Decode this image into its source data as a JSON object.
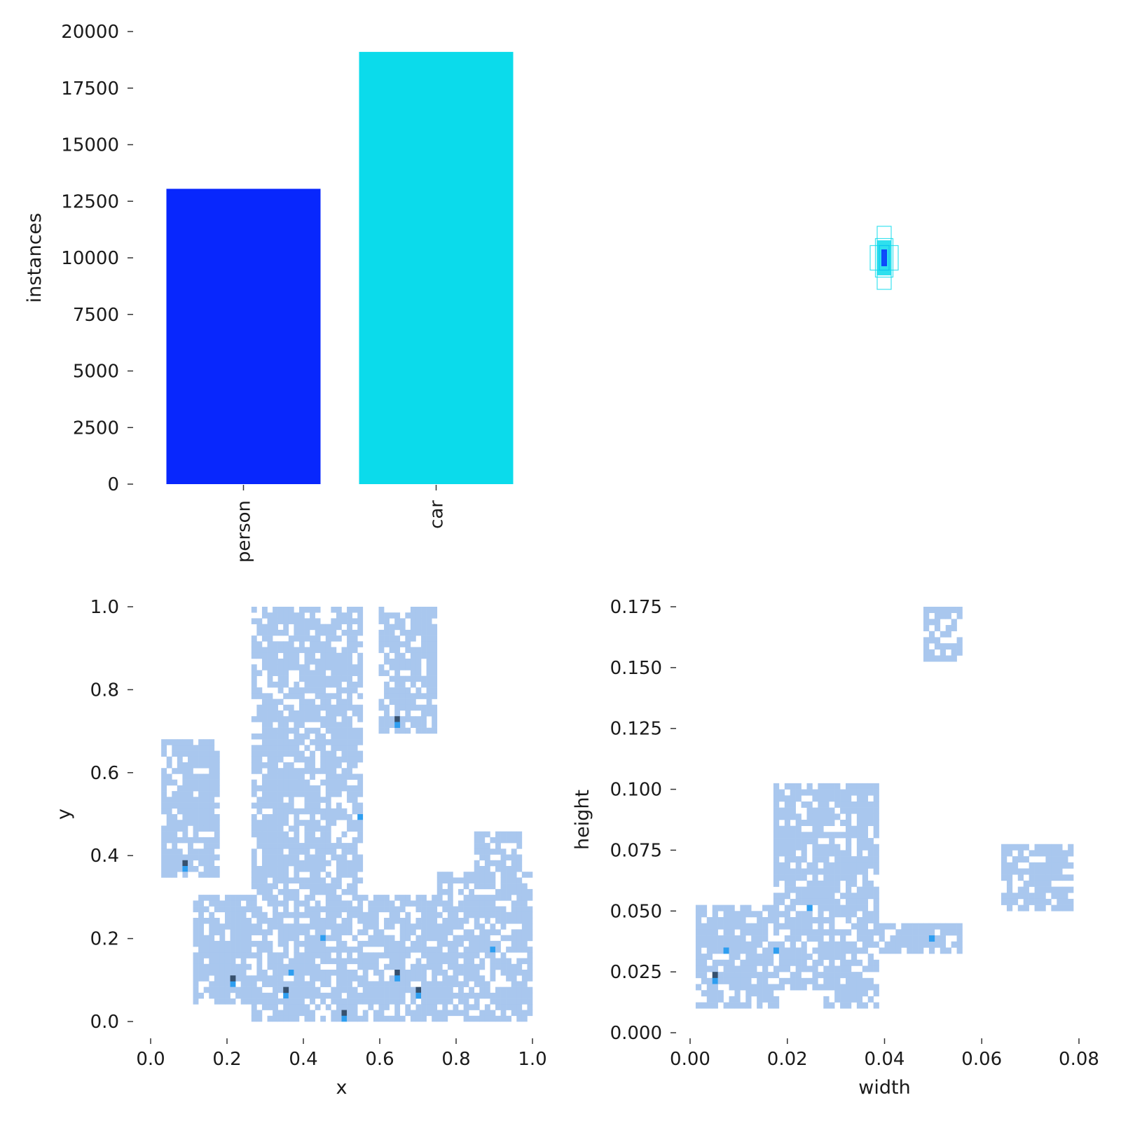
{
  "figure": {
    "colors": {
      "person": "#0827fd",
      "car": "#0bdbeb",
      "heat_light": "#a9c7ee",
      "heat_mid": "#2e9ef0",
      "heat_dark": "#37516e"
    }
  },
  "chart_data": [
    {
      "type": "bar",
      "categories": [
        "person",
        "car"
      ],
      "values": [
        13050,
        19100
      ],
      "colors": [
        "#0827fd",
        "#0bdbeb"
      ],
      "xlabel": "",
      "ylabel": "instances",
      "ylim": [
        0,
        20000
      ],
      "yticks": [
        "0",
        "2500",
        "5000",
        "7500",
        "10000",
        "12500",
        "15000",
        "17500",
        "20000"
      ],
      "grid": false
    },
    {
      "type": "scatter",
      "description_kind": "overlaid box outlines, centered",
      "xlabel": "",
      "ylabel": "",
      "boxes": [
        {
          "w": 0.02,
          "h": 0.09,
          "color": "#0bdbeb"
        },
        {
          "w": 0.04,
          "h": 0.035,
          "color": "#0bdbeb"
        },
        {
          "w": 0.025,
          "h": 0.055,
          "color": "#0bdbeb"
        },
        {
          "w": 0.014,
          "h": 0.035,
          "color": "#0827fd"
        },
        {
          "w": 0.006,
          "h": 0.02,
          "color": "#0827fd"
        }
      ]
    },
    {
      "type": "heatmap",
      "xlabel": "x",
      "ylabel": "y",
      "xlim": [
        0,
        1
      ],
      "ylim": [
        0,
        1
      ],
      "xticks": [
        "0.0",
        "0.2",
        "0.4",
        "0.6",
        "0.8",
        "1.0"
      ],
      "yticks": [
        "0.0",
        "0.2",
        "0.4",
        "0.6",
        "0.8",
        "1.0"
      ],
      "regions": [
        {
          "x": [
            0.27,
            0.55
          ],
          "y": [
            0.0,
            1.0
          ],
          "level": 1
        },
        {
          "x": [
            0.4,
            0.55
          ],
          "y": [
            0.75,
            0.95
          ],
          "level": 1
        },
        {
          "x": [
            0.6,
            0.74
          ],
          "y": [
            0.7,
            1.0
          ],
          "level": 1
        },
        {
          "x": [
            0.03,
            0.18
          ],
          "y": [
            0.35,
            0.68
          ],
          "level": 1
        },
        {
          "x": [
            0.12,
            0.3
          ],
          "y": [
            0.05,
            0.3
          ],
          "level": 1
        },
        {
          "x": [
            0.55,
            0.75
          ],
          "y": [
            0.0,
            0.3
          ],
          "level": 1
        },
        {
          "x": [
            0.75,
            1.0
          ],
          "y": [
            0.0,
            0.35
          ],
          "level": 1
        },
        {
          "x": [
            0.85,
            0.97
          ],
          "y": [
            0.35,
            0.45
          ],
          "level": 1
        }
      ],
      "hotspots": [
        {
          "x": 0.37,
          "y": 0.12,
          "level": 2
        },
        {
          "x": 0.35,
          "y": 0.08,
          "level": 3
        },
        {
          "x": 0.65,
          "y": 0.12,
          "level": 3
        },
        {
          "x": 0.7,
          "y": 0.08,
          "level": 3
        },
        {
          "x": 0.09,
          "y": 0.38,
          "level": 3
        },
        {
          "x": 0.22,
          "y": 0.11,
          "level": 3
        },
        {
          "x": 0.65,
          "y": 0.73,
          "level": 3
        },
        {
          "x": 0.55,
          "y": 0.5,
          "level": 2
        },
        {
          "x": 0.45,
          "y": 0.2,
          "level": 2
        },
        {
          "x": 0.5,
          "y": 0.02,
          "level": 3
        },
        {
          "x": 0.9,
          "y": 0.18,
          "level": 2
        }
      ]
    },
    {
      "type": "heatmap",
      "xlabel": "width",
      "ylabel": "height",
      "xlim": [
        0,
        0.08
      ],
      "ylim": [
        0,
        0.175
      ],
      "xticks": [
        "0.00",
        "0.02",
        "0.04",
        "0.06",
        "0.08"
      ],
      "yticks": [
        "0.000",
        "0.025",
        "0.050",
        "0.075",
        "0.100",
        "0.125",
        "0.150",
        "0.175"
      ],
      "regions": [
        {
          "x": [
            0.002,
            0.018
          ],
          "y": [
            0.01,
            0.05
          ],
          "level": 1
        },
        {
          "x": [
            0.018,
            0.038
          ],
          "y": [
            0.02,
            0.1
          ],
          "level": 1
        },
        {
          "x": [
            0.028,
            0.038
          ],
          "y": [
            0.012,
            0.1
          ],
          "level": 1
        },
        {
          "x": [
            0.034,
            0.055
          ],
          "y": [
            0.033,
            0.045
          ],
          "level": 1
        },
        {
          "x": [
            0.064,
            0.078
          ],
          "y": [
            0.05,
            0.075
          ],
          "level": 1
        },
        {
          "x": [
            0.049,
            0.055
          ],
          "y": [
            0.153,
            0.175
          ],
          "level": 1
        }
      ],
      "hotspots": [
        {
          "x": 0.005,
          "y": 0.025,
          "level": 3
        },
        {
          "x": 0.007,
          "y": 0.033,
          "level": 2
        },
        {
          "x": 0.018,
          "y": 0.035,
          "level": 2
        },
        {
          "x": 0.025,
          "y": 0.05,
          "level": 2
        },
        {
          "x": 0.05,
          "y": 0.04,
          "level": 2
        }
      ]
    }
  ]
}
